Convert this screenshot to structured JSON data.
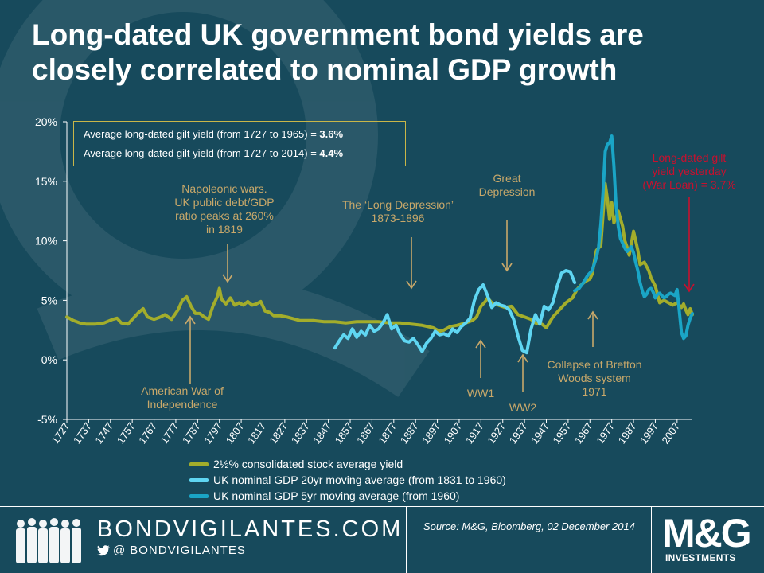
{
  "title": {
    "line1": "Long-dated UK government bond yields are",
    "line2": "closely correlated to nominal GDP growth"
  },
  "info_box": {
    "line1_text": "Average long-dated gilt yield (from 1727 to 1965) = ",
    "line1_value": "3.6%",
    "line2_text": "Average long-dated gilt yield (from 1727 to 2014) = ",
    "line2_value": "4.4%"
  },
  "colors": {
    "background": "#174a5c",
    "consol": "#a3ad2b",
    "gdp20": "#5fd6f2",
    "gdp5": "#1aa5c6",
    "annotation": "#c8a86a",
    "annotation_red": "#c8102e"
  },
  "legend": {
    "items": [
      {
        "label": "2½% consolidated stock average yield",
        "color": "#a3ad2b"
      },
      {
        "label": "UK nominal GDP 20yr moving average (from 1831 to 1960)",
        "color": "#5fd6f2"
      },
      {
        "label": "UK nominal GDP 5yr moving average (from 1960)",
        "color": "#1aa5c6"
      }
    ]
  },
  "footer": {
    "brand": "BONDVIGILANTES.COM",
    "handle_prefix": "@",
    "handle": "BONDVIGILANTES",
    "source": "Source: M&G, Bloomberg, 02 December 2014",
    "logo": "M&G",
    "logo_sub": "INVESTMENTS"
  },
  "chart_data": {
    "type": "line",
    "title": "Long-dated UK government bond yields are closely correlated to nominal GDP growth",
    "xlabel": "",
    "ylabel": "",
    "xlim": [
      1727,
      2014
    ],
    "ylim": [
      -5,
      20
    ],
    "yticks": [
      "-5%",
      "0%",
      "5%",
      "10%",
      "15%",
      "20%"
    ],
    "ytick_values": [
      -5,
      0,
      5,
      10,
      15,
      20
    ],
    "xticks": [
      "1727",
      "1737",
      "1747",
      "1757",
      "1767",
      "1777",
      "1787",
      "1797",
      "1807",
      "1817",
      "1827",
      "1837",
      "1847",
      "1857",
      "1867",
      "1877",
      "1887",
      "1897",
      "1907",
      "1917",
      "1927",
      "1937",
      "1947",
      "1957",
      "1967",
      "1977",
      "1987",
      "1997",
      "2007"
    ],
    "series": [
      {
        "name": "2½% consolidated stock average yield",
        "x": [
          1727,
          1730,
          1733,
          1736,
          1740,
          1744,
          1748,
          1750,
          1752,
          1755,
          1757,
          1760,
          1762,
          1764,
          1767,
          1770,
          1772,
          1775,
          1778,
          1780,
          1782,
          1784,
          1786,
          1788,
          1790,
          1792,
          1794,
          1796,
          1797,
          1798,
          1800,
          1802,
          1804,
          1806,
          1808,
          1810,
          1812,
          1814,
          1816,
          1818,
          1820,
          1822,
          1825,
          1828,
          1830,
          1834,
          1840,
          1845,
          1850,
          1855,
          1860,
          1865,
          1870,
          1875,
          1880,
          1885,
          1890,
          1895,
          1898,
          1900,
          1903,
          1906,
          1910,
          1913,
          1915,
          1917,
          1919,
          1920,
          1922,
          1925,
          1928,
          1931,
          1934,
          1937,
          1940,
          1942,
          1945,
          1947,
          1950,
          1953,
          1956,
          1959,
          1961,
          1963,
          1965,
          1967,
          1968,
          1970,
          1972,
          1974,
          1975,
          1976,
          1977,
          1978,
          1980,
          1982,
          1983,
          1984,
          1985,
          1987,
          1989,
          1990,
          1992,
          1994,
          1995,
          1997,
          1999,
          2001,
          2003,
          2005,
          2007,
          2009,
          2010,
          2011,
          2012,
          2013,
          2014
        ],
        "values": [
          3.6,
          3.3,
          3.1,
          3.0,
          3.0,
          3.1,
          3.4,
          3.5,
          3.1,
          3.0,
          3.4,
          4.0,
          4.3,
          3.6,
          3.4,
          3.6,
          3.8,
          3.4,
          4.2,
          5.0,
          5.3,
          4.5,
          3.9,
          3.9,
          3.6,
          3.4,
          4.5,
          5.3,
          6.0,
          5.1,
          4.7,
          5.2,
          4.6,
          4.8,
          4.6,
          4.9,
          4.6,
          4.7,
          4.9,
          4.1,
          4.0,
          3.7,
          3.7,
          3.6,
          3.5,
          3.3,
          3.3,
          3.2,
          3.2,
          3.1,
          3.2,
          3.2,
          3.2,
          3.1,
          3.1,
          3.0,
          2.9,
          2.7,
          2.4,
          2.5,
          2.8,
          2.9,
          3.1,
          3.3,
          3.6,
          4.5,
          4.9,
          5.2,
          4.8,
          4.6,
          4.4,
          4.5,
          3.8,
          3.6,
          3.4,
          3.1,
          3.0,
          2.7,
          3.6,
          4.2,
          4.8,
          5.2,
          5.9,
          6.3,
          6.6,
          6.8,
          7.2,
          9.2,
          9.6,
          14.8,
          13.5,
          11.8,
          13.2,
          11.5,
          12.5,
          11.2,
          10.0,
          9.5,
          8.8,
          10.8,
          9.2,
          8.0,
          8.2,
          7.5,
          6.9,
          6.2,
          4.8,
          5.0,
          4.8,
          4.6,
          4.8,
          4.4,
          4.7,
          4.2,
          3.8,
          4.3,
          3.8
        ]
      },
      {
        "name": "UK nominal GDP 20yr moving average (from 1831 to 1960)",
        "x": [
          1850,
          1852,
          1854,
          1856,
          1858,
          1860,
          1862,
          1864,
          1866,
          1868,
          1870,
          1872,
          1874,
          1876,
          1878,
          1880,
          1882,
          1884,
          1886,
          1888,
          1890,
          1892,
          1894,
          1896,
          1898,
          1900,
          1902,
          1904,
          1906,
          1908,
          1910,
          1912,
          1914,
          1916,
          1918,
          1920,
          1922,
          1924,
          1926,
          1928,
          1930,
          1932,
          1934,
          1936,
          1938,
          1940,
          1942,
          1944,
          1946,
          1948,
          1950,
          1952,
          1954,
          1956,
          1958,
          1960
        ],
        "values": [
          1.0,
          1.6,
          2.1,
          1.8,
          2.6,
          1.9,
          2.4,
          2.1,
          2.9,
          2.4,
          2.6,
          3.1,
          3.8,
          2.6,
          2.9,
          2.1,
          1.6,
          1.5,
          1.8,
          1.3,
          0.7,
          1.4,
          1.8,
          2.4,
          2.1,
          2.2,
          2.0,
          2.6,
          2.3,
          2.8,
          3.1,
          3.5,
          5.0,
          5.9,
          6.3,
          5.4,
          4.4,
          4.8,
          4.6,
          4.5,
          4.2,
          3.4,
          2.0,
          0.8,
          0.6,
          2.6,
          3.8,
          3.0,
          4.5,
          4.2,
          4.8,
          6.2,
          7.3,
          7.5,
          7.4,
          6.5
        ]
      },
      {
        "name": "UK nominal GDP 5yr moving average (from 1960)",
        "x": [
          1960,
          1962,
          1964,
          1966,
          1968,
          1970,
          1971,
          1972,
          1973,
          1974,
          1975,
          1976,
          1977,
          1978,
          1979,
          1980,
          1981,
          1982,
          1983,
          1984,
          1985,
          1986,
          1987,
          1988,
          1989,
          1990,
          1991,
          1992,
          1993,
          1994,
          1995,
          1996,
          1997,
          1998,
          1999,
          2000,
          2001,
          2002,
          2003,
          2004,
          2005,
          2006,
          2007,
          2008,
          2009,
          2010,
          2011,
          2012,
          2013,
          2014
        ],
        "values": [
          5.8,
          6.0,
          6.5,
          7.1,
          7.5,
          8.6,
          9.5,
          11.4,
          14.0,
          17.5,
          18.1,
          18.2,
          18.8,
          16.3,
          13.0,
          11.2,
          10.2,
          9.8,
          9.4,
          9.1,
          9.3,
          9.5,
          9.0,
          8.2,
          7.5,
          6.5,
          5.8,
          5.3,
          5.5,
          5.9,
          6.0,
          5.7,
          5.2,
          5.5,
          5.6,
          5.4,
          5.2,
          5.3,
          5.5,
          5.6,
          5.5,
          5.4,
          5.9,
          4.1,
          2.3,
          1.8,
          2.0,
          2.9,
          3.5,
          3.9
        ]
      }
    ],
    "annotations": [
      {
        "id": "napoleonic",
        "lines": [
          "Napoleonic wars.",
          "UK public debt/GDP",
          "ratio peaks at 260%",
          "in 1819"
        ],
        "year": 1800
      },
      {
        "id": "american-war",
        "lines": [
          "American War of",
          "Independence"
        ],
        "year": 1785
      },
      {
        "id": "long-depression",
        "lines": [
          "The ‘Long Depression’",
          "1873-1896"
        ],
        "year": 1885
      },
      {
        "id": "great-depression",
        "lines": [
          "Great",
          "Depression"
        ],
        "year": 1930
      },
      {
        "id": "ww1",
        "lines": [
          "WW1"
        ],
        "year": 1916
      },
      {
        "id": "ww2",
        "lines": [
          "WW2"
        ],
        "year": 1939
      },
      {
        "id": "bretton-woods",
        "lines": [
          "Collapse of Bretton",
          "Woods system",
          "1971"
        ],
        "year": 1971
      },
      {
        "id": "war-loan",
        "lines": [
          "Long-dated gilt",
          "yield yesterday",
          "(War Loan) = 3.7%"
        ],
        "year": 2014
      }
    ]
  }
}
